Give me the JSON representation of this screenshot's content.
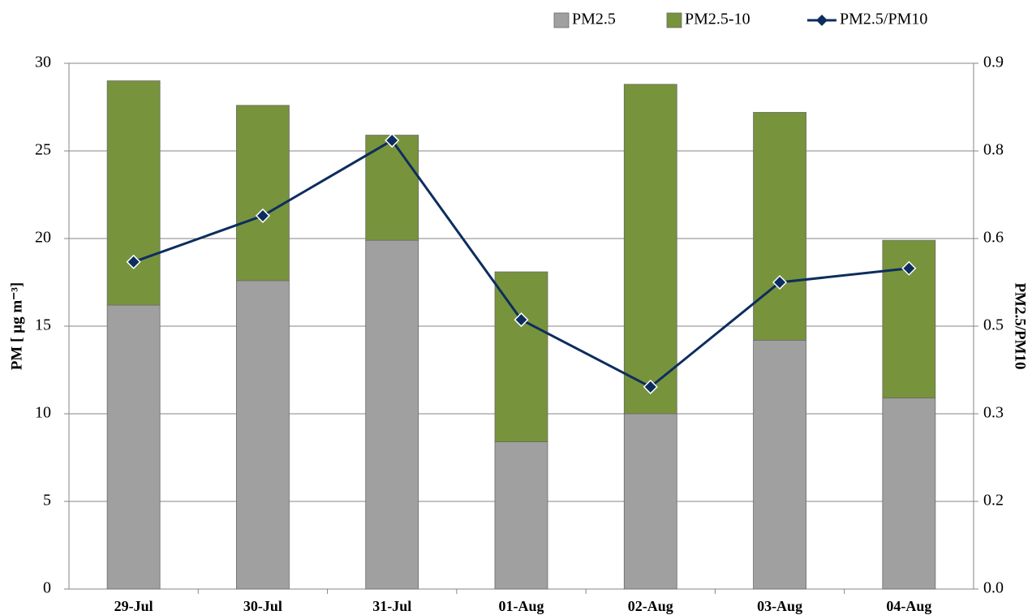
{
  "chart_data": {
    "type": "bar",
    "stacked": true,
    "categories": [
      "29-Jul",
      "30-Jul",
      "31-Jul",
      "01-Aug",
      "02-Aug",
      "03-Aug",
      "04-Aug"
    ],
    "series": [
      {
        "name": "PM2.5",
        "color": "#a0a0a0",
        "values": [
          16.2,
          17.6,
          19.9,
          8.4,
          10.0,
          14.2,
          10.9
        ]
      },
      {
        "name": "PM2.5-10",
        "color": "#77933c",
        "values": [
          12.8,
          10.0,
          6.0,
          9.7,
          18.8,
          13.0,
          9.0
        ]
      },
      {
        "name": "PM2.5/PM10",
        "color": "#0d2d5e",
        "type": "line",
        "axis": "y2",
        "values": [
          0.56,
          0.639,
          0.768,
          0.461,
          0.346,
          0.525,
          0.549
        ]
      }
    ],
    "ylabel": "PM [ µg m⁻³]",
    "y2label": "PM2.5/PM10",
    "ylim": [
      0,
      30
    ],
    "yticks": [
      0,
      5,
      10,
      15,
      20,
      25,
      30
    ],
    "y2lim": [
      0,
      0.9
    ],
    "y2ticks": [
      {
        "value": 0,
        "label": "0.0"
      },
      {
        "value": 0.15,
        "label": "0.2"
      },
      0.3,
      {
        "value": 0.45,
        "label": "0.5"
      },
      0.6,
      {
        "value": 0.75,
        "label": "0.8"
      },
      0.9
    ],
    "grid": true,
    "legend": "top"
  }
}
